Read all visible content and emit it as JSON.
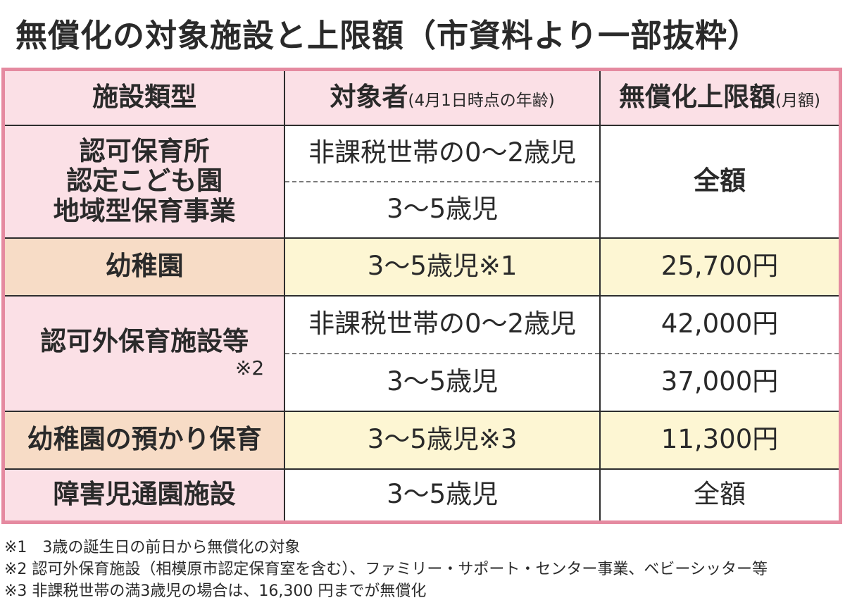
{
  "title": "無償化の対象施設と上限額（市資料より一部抜粋）",
  "header": {
    "col1": "施設類型",
    "col2": "対象者",
    "col2_note": "(4月1日時点の年齢)",
    "col3": "無償化上限額",
    "col3_note": "(月額)"
  },
  "rows": {
    "r1": {
      "type_lines": [
        "認可保育所",
        "認定こども園",
        "地域型保育事業"
      ],
      "target_a": "非課税世帯の0〜2歳児",
      "target_b": "3〜5歳児",
      "amount": "全額"
    },
    "r2": {
      "type": "幼稚園",
      "target": "3〜5歳児※1",
      "amount": "25,700円"
    },
    "r3": {
      "type": "認可外保育施設等",
      "type_note": "※2",
      "target_a": "非課税世帯の0〜2歳児",
      "amount_a": "42,000円",
      "target_b": "3〜5歳児",
      "amount_b": "37,000円"
    },
    "r4": {
      "type": "幼稚園の預かり保育",
      "target": "3〜5歳児※3",
      "amount": "11,300円"
    },
    "r5": {
      "type": "障害児通園施設",
      "target": "3〜5歳児",
      "amount": "全額"
    }
  },
  "notes": [
    "※1　3歳の誕生日の前日から無償化の対象",
    "※2 認可外保育施設（相模原市認定保育室を含む）、ファミリー・サポート・センター事業、ベビーシッター等",
    "※3 非課税世帯の満3歳児の場合は、16,300 円までが無償化"
  ],
  "colors": {
    "border_accent": "#e58aa0",
    "pink_fill": "#fbe0e6",
    "orange_fill": "#f7dcc6",
    "yellow_fill": "#fdf6d3"
  }
}
